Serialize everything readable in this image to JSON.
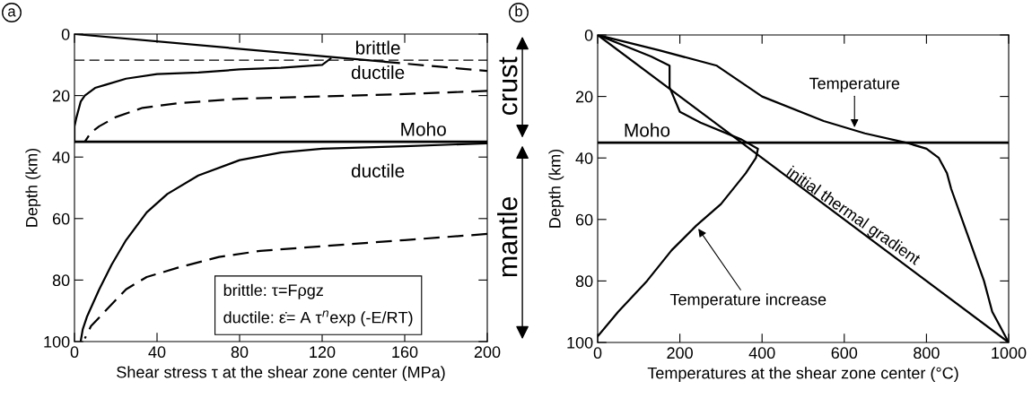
{
  "chart_data": [
    {
      "type": "line",
      "xlabel": "Shear stress τ at the shear zone center (MPa)",
      "ylabel": "Depth (km)",
      "xlim": [
        0,
        200
      ],
      "ylim": [
        100,
        0
      ],
      "xticks": [
        0,
        40,
        80,
        120,
        160,
        200
      ],
      "yticks": [
        0,
        20,
        40,
        60,
        80,
        100
      ],
      "grid": false,
      "series": [
        {
          "color": "#000000",
          "line_style": "solid",
          "x": [
            0,
            150
          ],
          "values": [
            0,
            9
          ]
        },
        {
          "color": "#000000",
          "line_style": "dashed",
          "x": [
            150,
            200
          ],
          "values": [
            9,
            12
          ]
        },
        {
          "color": "#000000",
          "line_style": "solid",
          "x": [
            124,
            120,
            100,
            80,
            60,
            40,
            25,
            15,
            10,
            5,
            3,
            1,
            0,
            0
          ],
          "values": [
            8,
            10,
            11,
            11.5,
            12.5,
            13,
            14.5,
            16.5,
            17.5,
            20,
            22,
            27,
            30,
            35
          ]
        },
        {
          "color": "#000000",
          "line_style": "dashed",
          "x": [
            200,
            160,
            120,
            80,
            50,
            33,
            20,
            12,
            8,
            6,
            5
          ],
          "values": [
            18.5,
            19.5,
            20.3,
            21,
            22.5,
            24,
            27,
            30,
            32,
            34,
            35
          ]
        },
        {
          "color": "#000000",
          "line_style": "solid",
          "x": [
            200,
            160,
            120,
            100,
            80,
            60,
            45,
            35,
            25,
            18,
            12,
            6,
            4,
            3
          ],
          "values": [
            35.5,
            36.5,
            37.3,
            38.5,
            41,
            46,
            52,
            58,
            67,
            75,
            83,
            92,
            96,
            100
          ]
        },
        {
          "color": "#000000",
          "line_style": "dashed",
          "x": [
            200,
            160,
            120,
            90,
            70,
            50,
            35,
            25,
            15,
            8,
            5
          ],
          "values": [
            65,
            67,
            69,
            70.5,
            72.5,
            76,
            79,
            83,
            90,
            95,
            99
          ]
        }
      ],
      "ref_lines": [
        {
          "axis": "y",
          "value": 8.5,
          "color": "#000000",
          "line_style": "dashed"
        },
        {
          "axis": "y",
          "value": 35,
          "color": "#000000",
          "line_style": "solid"
        }
      ],
      "annotations": [
        "a",
        "brittle: τ=Fρgz",
        "ductile: ε̇= A τ$^{n}$exp (-E/RT)",
        "brittle",
        "ductile",
        "Moho",
        "ductile",
        "crust",
        "mantle"
      ],
      "marker": "none"
    },
    {
      "type": "line",
      "xlabel": "Temperatures at the shear zone center (°C)",
      "ylabel": "Depth (km)",
      "xlim": [
        0,
        1000
      ],
      "ylim": [
        100,
        0
      ],
      "xticks": [
        0,
        200,
        400,
        600,
        800,
        1000
      ],
      "yticks": [
        0,
        20,
        40,
        60,
        80,
        100
      ],
      "grid": false,
      "series": [
        {
          "color": "#000000",
          "line_style": "solid",
          "x": [
            0,
            1000
          ],
          "values": [
            0,
            100
          ]
        },
        {
          "color": "#000000",
          "line_style": "solid",
          "x": [
            0,
            150,
            290,
            400,
            550,
            650,
            750,
            800,
            830,
            850,
            860,
            900,
            940,
            960,
            980,
            1000
          ],
          "values": [
            0,
            5,
            10,
            20,
            28,
            32,
            35,
            37,
            40,
            45,
            50,
            65,
            80,
            90,
            95,
            100
          ]
        },
        {
          "color": "#000000",
          "line_style": "solid",
          "x": [
            0,
            130,
            175,
            175,
            200,
            250,
            350,
            390,
            385,
            360,
            300,
            240,
            180,
            120,
            50,
            0
          ],
          "values": [
            0,
            7,
            10,
            17,
            25,
            28.5,
            34,
            37,
            40,
            45,
            55,
            62,
            70,
            80,
            90,
            98
          ]
        }
      ],
      "ref_lines": [
        {
          "axis": "y",
          "value": 35,
          "color": "#000000",
          "line_style": "solid"
        }
      ],
      "annotations": [
        "b",
        "Moho",
        {
          "text": "Temperature",
          "x": 625,
          "y": 30
        },
        {
          "text": "Temperature increase",
          "x": 245,
          "y": 63
        },
        {
          "text": "initial thermal gradient",
          "x": 610,
          "y": 61
        }
      ],
      "marker": "none"
    }
  ]
}
